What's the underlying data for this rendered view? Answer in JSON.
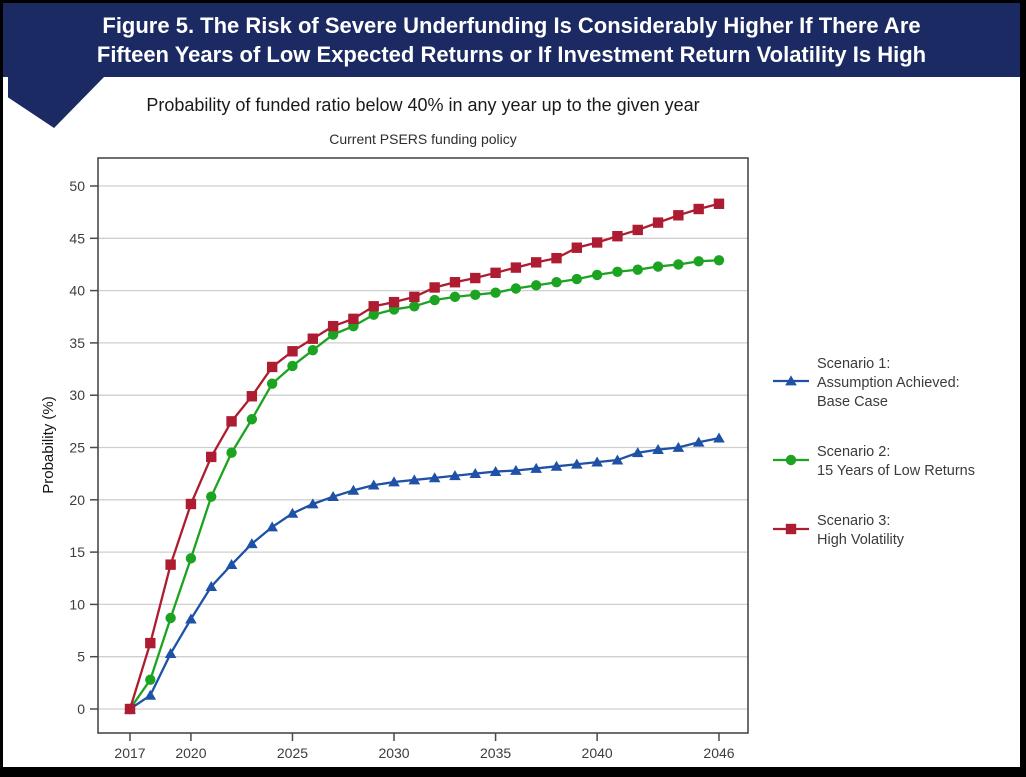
{
  "page": {
    "banner": {
      "line1": "Figure 5. The Risk of Severe Underfunding Is Considerably Higher If There Are",
      "line2": "Fifteen Years of Low Expected Returns or If Investment Return Volatility Is High",
      "bg_color": "#1b2a63",
      "text_color": "#ffffff"
    },
    "subtitle": "Probability of funded ratio below 40% in any year up to the given year"
  },
  "chart_data": {
    "type": "line",
    "title": "Current PSERS funding policy",
    "xlabel": "",
    "ylabel": "Probability (%)",
    "grid": true,
    "legend_position": "right",
    "xlim": [
      2015.4,
      2047.4
    ],
    "ylim": [
      0,
      51.5
    ],
    "xticks": [
      2017,
      2020,
      2025,
      2030,
      2035,
      2040,
      2046
    ],
    "yticks": [
      0,
      5,
      10,
      15,
      20,
      25,
      30,
      35,
      40,
      45,
      50
    ],
    "x": [
      2017,
      2018,
      2019,
      2020,
      2021,
      2022,
      2023,
      2024,
      2025,
      2026,
      2027,
      2028,
      2029,
      2030,
      2031,
      2032,
      2033,
      2034,
      2035,
      2036,
      2037,
      2038,
      2039,
      2040,
      2041,
      2042,
      2043,
      2044,
      2045,
      2046
    ],
    "series": [
      {
        "id": "scenario-1",
        "label_lines": [
          "Scenario 1:",
          "Assumption Achieved:",
          "Base Case"
        ],
        "marker": "triangle",
        "color": "#1f51a6",
        "values": [
          0,
          1.3,
          5.3,
          8.6,
          11.7,
          13.8,
          15.8,
          17.4,
          18.7,
          19.6,
          20.3,
          20.9,
          21.4,
          21.7,
          21.9,
          22.1,
          22.3,
          22.5,
          22.7,
          22.8,
          23.0,
          23.2,
          23.4,
          23.6,
          23.8,
          24.5,
          24.8,
          25.0,
          25.5,
          25.9
        ]
      },
      {
        "id": "scenario-2",
        "label_lines": [
          "Scenario 2:",
          "15 Years of Low Returns"
        ],
        "marker": "circle",
        "color": "#1ca321",
        "values": [
          0,
          2.8,
          8.7,
          14.4,
          20.3,
          24.5,
          27.7,
          31.1,
          32.8,
          34.3,
          35.8,
          36.6,
          37.7,
          38.2,
          38.5,
          39.1,
          39.4,
          39.6,
          39.8,
          40.2,
          40.5,
          40.8,
          41.1,
          41.5,
          41.8,
          42.0,
          42.3,
          42.5,
          42.8,
          42.9
        ]
      },
      {
        "id": "scenario-3",
        "label_lines": [
          "Scenario 3:",
          "High Volatility"
        ],
        "marker": "square",
        "color": "#ae1c32",
        "values": [
          0,
          6.3,
          13.8,
          19.6,
          24.1,
          27.5,
          29.9,
          32.7,
          34.2,
          35.4,
          36.6,
          37.3,
          38.5,
          38.9,
          39.4,
          40.3,
          40.8,
          41.2,
          41.7,
          42.2,
          42.7,
          43.1,
          44.1,
          44.6,
          45.2,
          45.8,
          46.5,
          47.2,
          47.8,
          48.3
        ]
      }
    ]
  }
}
